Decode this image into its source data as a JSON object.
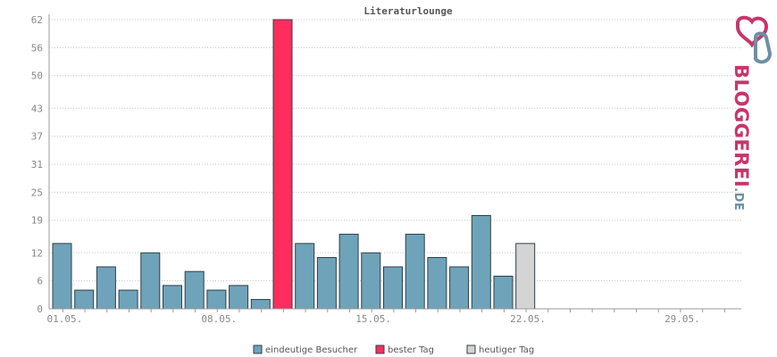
{
  "chart_data": {
    "type": "bar",
    "title": "Literaturlounge",
    "x_tick_labels": [
      "01.05.",
      "08.05.",
      "15.05.",
      "22.05.",
      "29.05."
    ],
    "y_ticks": [
      0,
      6,
      12,
      19,
      25,
      31,
      37,
      43,
      50,
      56,
      62
    ],
    "ylim": [
      0,
      62
    ],
    "days_in_month": 31,
    "grid": true,
    "series": [
      {
        "name": "eindeutige Besucher",
        "color": "#6ea3ba",
        "values": [
          {
            "day": 1,
            "value": 14
          },
          {
            "day": 2,
            "value": 4
          },
          {
            "day": 3,
            "value": 9
          },
          {
            "day": 4,
            "value": 4
          },
          {
            "day": 5,
            "value": 12
          },
          {
            "day": 6,
            "value": 5
          },
          {
            "day": 7,
            "value": 8
          },
          {
            "day": 8,
            "value": 4
          },
          {
            "day": 9,
            "value": 5
          },
          {
            "day": 10,
            "value": 2
          },
          {
            "day": 12,
            "value": 14
          },
          {
            "day": 13,
            "value": 11
          },
          {
            "day": 14,
            "value": 16
          },
          {
            "day": 15,
            "value": 12
          },
          {
            "day": 16,
            "value": 9
          },
          {
            "day": 17,
            "value": 16
          },
          {
            "day": 18,
            "value": 11
          },
          {
            "day": 19,
            "value": 9
          },
          {
            "day": 20,
            "value": 20
          },
          {
            "day": 21,
            "value": 7
          }
        ]
      },
      {
        "name": "bester Tag",
        "color": "#ff2d5e",
        "values": [
          {
            "day": 11,
            "value": 62
          }
        ]
      },
      {
        "name": "heutiger Tag",
        "color": "#d4d4d4",
        "values": [
          {
            "day": 22,
            "value": 14
          }
        ]
      }
    ],
    "legend_position": "bottom"
  },
  "logo": {
    "text_main": "BLOGGEREI",
    "text_suffix": ".DE",
    "color_pink": "#c8356a",
    "color_blue": "#6c8fa5"
  }
}
